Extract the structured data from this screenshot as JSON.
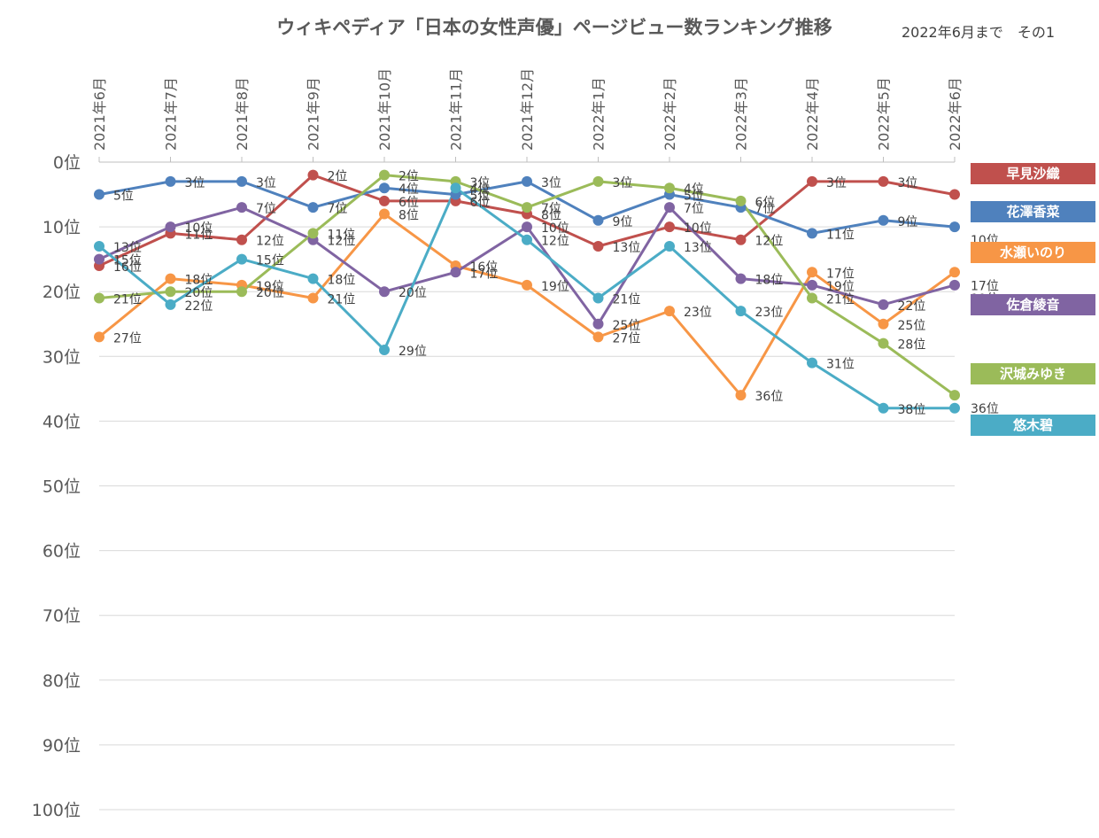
{
  "chart_data": {
    "type": "line",
    "title": "ウィキペディア「日本の女性声優」ページビュー数ランキング推移",
    "subtitle": "2022年6月まで　その1",
    "categories": [
      "2021年6月",
      "2021年7月",
      "2021年8月",
      "2021年9月",
      "2021年10月",
      "2021年11月",
      "2021年12月",
      "2022年1月",
      "2022年2月",
      "2022年3月",
      "2022年4月",
      "2022年5月",
      "2022年6月"
    ],
    "ylim": [
      0,
      100
    ],
    "yinverted": true,
    "yticks": [
      0,
      10,
      20,
      30,
      40,
      50,
      60,
      70,
      80,
      90,
      100
    ],
    "ytick_suffix": "位",
    "label_suffix": "位",
    "grid": true,
    "legend_position": "right",
    "series": [
      {
        "name": "早見沙織",
        "color": "#c0504d",
        "values": [
          16,
          11,
          12,
          2,
          6,
          6,
          8,
          13,
          10,
          12,
          3,
          3,
          5
        ]
      },
      {
        "name": "花澤香菜",
        "color": "#4f81bd",
        "values": [
          5,
          3,
          3,
          7,
          4,
          5,
          3,
          9,
          5,
          7,
          11,
          9,
          10
        ]
      },
      {
        "name": "水瀬いのり",
        "color": "#f79646",
        "values": [
          27,
          18,
          19,
          21,
          8,
          16,
          19,
          27,
          23,
          36,
          17,
          25,
          17
        ]
      },
      {
        "name": "佐倉綾音",
        "color": "#8064a2",
        "values": [
          15,
          10,
          7,
          12,
          20,
          17,
          10,
          25,
          7,
          18,
          19,
          22,
          19
        ]
      },
      {
        "name": "沢城みゆき",
        "color": "#9bbb59",
        "values": [
          21,
          20,
          20,
          11,
          2,
          3,
          7,
          3,
          4,
          6,
          21,
          28,
          36
        ]
      },
      {
        "name": "悠木碧",
        "color": "#4bacc6",
        "values": [
          13,
          22,
          15,
          18,
          29,
          4,
          12,
          21,
          13,
          23,
          31,
          38,
          38
        ]
      }
    ]
  }
}
